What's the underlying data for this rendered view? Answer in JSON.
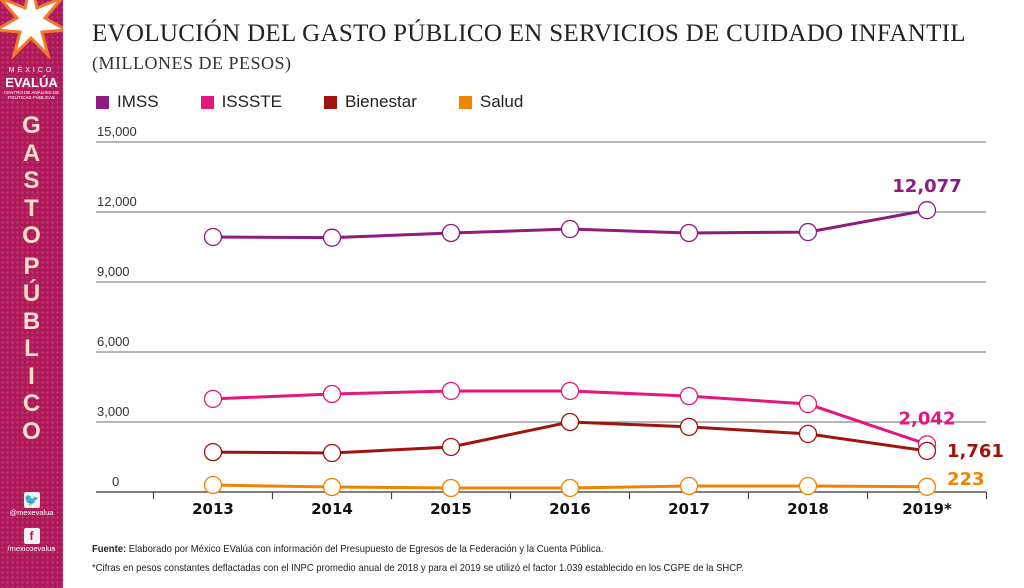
{
  "brand": {
    "line1": "MÉXICO",
    "line2": "EVALÚA",
    "line3": "CENTRO DE ANÁLISIS DE POLÍTICAS PÚBLICAS"
  },
  "sidebar_title": [
    "G",
    "A",
    "S",
    "T",
    "O",
    "P",
    "Ú",
    "B",
    "L",
    "I",
    "C",
    "O"
  ],
  "social": {
    "twitter_icon": "twitter-icon",
    "twitter": "@mexevalua",
    "facebook_icon": "facebook-icon",
    "facebook": "/mexicoevalua"
  },
  "chart_data": {
    "type": "line",
    "title": "EVOLUCIÓN DEL GASTO PÚBLICO EN SERVICIOS DE CUIDADO INFANTIL",
    "subtitle": "(MILLONES DE PESOS)",
    "categories": [
      "2013",
      "2014",
      "2015",
      "2016",
      "2017",
      "2018",
      "2019*"
    ],
    "ylim": [
      0,
      15000
    ],
    "yticks": [
      "0",
      "3,000",
      "6,000",
      "9,000",
      "12,000",
      "15,000"
    ],
    "ytick_values": [
      0,
      3000,
      6000,
      9000,
      12000,
      15000
    ],
    "grid": true,
    "legend_position": "top-left",
    "series": [
      {
        "name": "IMSS",
        "color": "#8e1b7e",
        "values": [
          10930,
          10900,
          11100,
          11270,
          11100,
          11140,
          12077
        ],
        "end_label": "12,077"
      },
      {
        "name": "ISSSTE",
        "color": "#e5177e",
        "values": [
          3990,
          4200,
          4330,
          4330,
          4110,
          3770,
          2042
        ],
        "end_label": "2,042"
      },
      {
        "name": "Bienestar",
        "color": "#a0140e",
        "values": [
          1710,
          1670,
          1930,
          3000,
          2790,
          2490,
          1761
        ],
        "end_label": "1,761"
      },
      {
        "name": "Salud",
        "color": "#f08300",
        "values": [
          300,
          214,
          171,
          171,
          257,
          257,
          223
        ],
        "end_label": "223"
      }
    ]
  },
  "footer": {
    "source_label": "Fuente:",
    "source_text": " Elaborado por México EValúa con información del Presupuesto de Egresos de la Federación y la Cuenta Pública.",
    "note": "*Cifras en pesos constantes deflactadas con el INPC promedio anual de 2018 y para el 2019 se utilizó el factor 1.039 establecido en los CGPE de la SHCP."
  }
}
